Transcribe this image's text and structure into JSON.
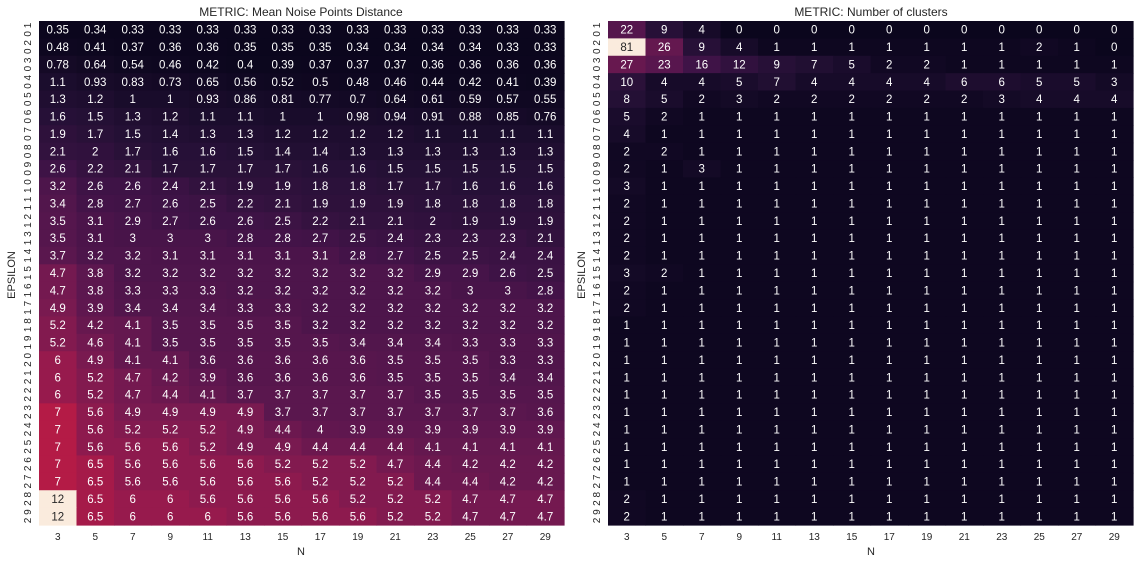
{
  "chart_data": [
    {
      "type": "heatmap",
      "title": "METRIC: Mean Noise Points Distance",
      "xlabel": "N",
      "ylabel": "EPSILON",
      "x_ticks": [
        "3",
        "5",
        "7",
        "9",
        "11",
        "13",
        "15",
        "17",
        "19",
        "21",
        "23",
        "25",
        "27",
        "29"
      ],
      "y_ticks": [
        "0.1",
        "0.2",
        "0.3",
        "0.4",
        "0.5",
        "0.6",
        "0.7",
        "0.8",
        "0.9",
        "1.0",
        "1.1",
        "1.2",
        "1.3",
        "1.4",
        "1.5",
        "1.6",
        "1.7",
        "1.8",
        "1.9",
        "2.0",
        "2.1",
        "2.2",
        "2.3",
        "2.4",
        "2.5",
        "2.6",
        "2.7",
        "2.8",
        "2.9"
      ],
      "y_tick_display": [
        "0 1",
        "0 2",
        "0 3",
        "0 4",
        "0 5",
        "0 6",
        "0 7",
        "0 8",
        "0 9",
        "1 0",
        "1 1",
        "1 2",
        "1 3",
        "1 4",
        "1 5",
        "1 6",
        "1 7",
        "1 8",
        "1 9",
        "2 0",
        "2 1",
        "2 2",
        "2 3",
        "2 4",
        "2 5",
        "2 6",
        "2 7",
        "2 8",
        "2 9"
      ],
      "colormap": "rocket",
      "vmin": 0.33,
      "vmax": 12,
      "values": [
        [
          "0.35",
          "0.34",
          "0.33",
          "0.33",
          "0.33",
          "0.33",
          "0.33",
          "0.33",
          "0.33",
          "0.33",
          "0.33",
          "0.33",
          "0.33",
          "0.33"
        ],
        [
          "0.48",
          "0.41",
          "0.37",
          "0.36",
          "0.36",
          "0.35",
          "0.35",
          "0.35",
          "0.34",
          "0.34",
          "0.34",
          "0.34",
          "0.33",
          "0.33"
        ],
        [
          "0.78",
          "0.64",
          "0.54",
          "0.46",
          "0.42",
          "0.4",
          "0.39",
          "0.37",
          "0.37",
          "0.37",
          "0.36",
          "0.36",
          "0.36",
          "0.36"
        ],
        [
          "1.1",
          "0.93",
          "0.83",
          "0.73",
          "0.65",
          "0.56",
          "0.52",
          "0.5",
          "0.48",
          "0.46",
          "0.44",
          "0.42",
          "0.41",
          "0.39"
        ],
        [
          "1.3",
          "1.2",
          "1",
          "1",
          "0.93",
          "0.86",
          "0.81",
          "0.77",
          "0.7",
          "0.64",
          "0.61",
          "0.59",
          "0.57",
          "0.55"
        ],
        [
          "1.6",
          "1.5",
          "1.3",
          "1.2",
          "1.1",
          "1.1",
          "1",
          "1",
          "0.98",
          "0.94",
          "0.91",
          "0.88",
          "0.85",
          "0.76"
        ],
        [
          "1.9",
          "1.7",
          "1.5",
          "1.4",
          "1.3",
          "1.3",
          "1.2",
          "1.2",
          "1.2",
          "1.2",
          "1.1",
          "1.1",
          "1.1",
          "1.1"
        ],
        [
          "2.1",
          "2",
          "1.7",
          "1.6",
          "1.6",
          "1.5",
          "1.4",
          "1.4",
          "1.3",
          "1.3",
          "1.3",
          "1.3",
          "1.3",
          "1.3"
        ],
        [
          "2.6",
          "2.2",
          "2.1",
          "1.7",
          "1.7",
          "1.7",
          "1.7",
          "1.6",
          "1.6",
          "1.5",
          "1.5",
          "1.5",
          "1.5",
          "1.5"
        ],
        [
          "3.2",
          "2.6",
          "2.6",
          "2.4",
          "2.1",
          "1.9",
          "1.9",
          "1.8",
          "1.8",
          "1.7",
          "1.7",
          "1.6",
          "1.6",
          "1.6"
        ],
        [
          "3.4",
          "2.8",
          "2.7",
          "2.6",
          "2.5",
          "2.2",
          "2.1",
          "1.9",
          "1.9",
          "1.9",
          "1.8",
          "1.8",
          "1.8",
          "1.8"
        ],
        [
          "3.5",
          "3.1",
          "2.9",
          "2.7",
          "2.6",
          "2.6",
          "2.5",
          "2.2",
          "2.1",
          "2.1",
          "2",
          "1.9",
          "1.9",
          "1.9"
        ],
        [
          "3.5",
          "3.1",
          "3",
          "3",
          "3",
          "2.8",
          "2.8",
          "2.7",
          "2.5",
          "2.4",
          "2.3",
          "2.3",
          "2.3",
          "2.1"
        ],
        [
          "3.7",
          "3.2",
          "3.2",
          "3.1",
          "3.1",
          "3.1",
          "3.1",
          "3.1",
          "2.8",
          "2.7",
          "2.5",
          "2.5",
          "2.4",
          "2.4"
        ],
        [
          "4.7",
          "3.8",
          "3.2",
          "3.2",
          "3.2",
          "3.2",
          "3.2",
          "3.2",
          "3.2",
          "3.2",
          "2.9",
          "2.9",
          "2.6",
          "2.5"
        ],
        [
          "4.7",
          "3.8",
          "3.3",
          "3.3",
          "3.3",
          "3.2",
          "3.2",
          "3.2",
          "3.2",
          "3.2",
          "3.2",
          "3",
          "3",
          "2.8"
        ],
        [
          "4.9",
          "3.9",
          "3.4",
          "3.4",
          "3.4",
          "3.3",
          "3.3",
          "3.2",
          "3.2",
          "3.2",
          "3.2",
          "3.2",
          "3.2",
          "3.2"
        ],
        [
          "5.2",
          "4.2",
          "4.1",
          "3.5",
          "3.5",
          "3.5",
          "3.5",
          "3.2",
          "3.2",
          "3.2",
          "3.2",
          "3.2",
          "3.2",
          "3.2"
        ],
        [
          "5.2",
          "4.6",
          "4.1",
          "3.5",
          "3.5",
          "3.5",
          "3.5",
          "3.5",
          "3.4",
          "3.4",
          "3.4",
          "3.3",
          "3.3",
          "3.3"
        ],
        [
          "6",
          "4.9",
          "4.1",
          "4.1",
          "3.6",
          "3.6",
          "3.6",
          "3.6",
          "3.6",
          "3.5",
          "3.5",
          "3.5",
          "3.3",
          "3.3"
        ],
        [
          "6",
          "5.2",
          "4.7",
          "4.2",
          "3.9",
          "3.6",
          "3.6",
          "3.6",
          "3.6",
          "3.5",
          "3.5",
          "3.5",
          "3.4",
          "3.4"
        ],
        [
          "6",
          "5.2",
          "4.7",
          "4.4",
          "4.1",
          "3.7",
          "3.7",
          "3.7",
          "3.7",
          "3.7",
          "3.5",
          "3.5",
          "3.5",
          "3.5"
        ],
        [
          "7",
          "5.6",
          "4.9",
          "4.9",
          "4.9",
          "4.9",
          "3.7",
          "3.7",
          "3.7",
          "3.7",
          "3.7",
          "3.7",
          "3.7",
          "3.6"
        ],
        [
          "7",
          "5.6",
          "5.2",
          "5.2",
          "5.2",
          "4.9",
          "4.4",
          "4",
          "3.9",
          "3.9",
          "3.9",
          "3.9",
          "3.9",
          "3.9"
        ],
        [
          "7",
          "5.6",
          "5.6",
          "5.6",
          "5.2",
          "4.9",
          "4.9",
          "4.4",
          "4.4",
          "4.4",
          "4.1",
          "4.1",
          "4.1",
          "4.1"
        ],
        [
          "7",
          "6.5",
          "5.6",
          "5.6",
          "5.6",
          "5.6",
          "5.2",
          "5.2",
          "5.2",
          "4.7",
          "4.4",
          "4.2",
          "4.2",
          "4.2"
        ],
        [
          "7",
          "6.5",
          "5.6",
          "5.6",
          "5.6",
          "5.6",
          "5.6",
          "5.2",
          "5.2",
          "5.2",
          "4.4",
          "4.4",
          "4.2",
          "4.2"
        ],
        [
          "12",
          "6.5",
          "6",
          "6",
          "5.6",
          "5.6",
          "5.6",
          "5.6",
          "5.2",
          "5.2",
          "5.2",
          "4.7",
          "4.7",
          "4.7"
        ],
        [
          "12",
          "6.5",
          "6",
          "6",
          "6",
          "5.6",
          "5.6",
          "5.6",
          "5.6",
          "5.2",
          "5.2",
          "4.7",
          "4.7",
          "4.7"
        ]
      ]
    },
    {
      "type": "heatmap",
      "title": "METRIC: Number of clusters",
      "xlabel": "N",
      "ylabel": "EPSILON",
      "x_ticks": [
        "3",
        "5",
        "7",
        "9",
        "11",
        "13",
        "15",
        "17",
        "19",
        "21",
        "23",
        "25",
        "27",
        "29"
      ],
      "y_ticks": [
        "0.1",
        "0.2",
        "0.3",
        "0.4",
        "0.5",
        "0.6",
        "0.7",
        "0.8",
        "0.9",
        "1.0",
        "1.1",
        "1.2",
        "1.3",
        "1.4",
        "1.5",
        "1.6",
        "1.7",
        "1.8",
        "1.9",
        "2.0",
        "2.1",
        "2.2",
        "2.3",
        "2.4",
        "2.5",
        "2.6",
        "2.7",
        "2.8",
        "2.9"
      ],
      "y_tick_display": [
        "0 1",
        "0 2",
        "0 3",
        "0 4",
        "0 5",
        "0 6",
        "0 7",
        "0 8",
        "0 9",
        "1 0",
        "1 1",
        "1 2",
        "1 3",
        "1 4",
        "1 5",
        "1 6",
        "1 7",
        "1 8",
        "1 9",
        "2 0",
        "2 1",
        "2 2",
        "2 3",
        "2 4",
        "2 5",
        "2 6",
        "2 7",
        "2 8",
        "2 9"
      ],
      "colormap": "rocket",
      "vmin": 0,
      "vmax": 81,
      "values": [
        [
          "22",
          "9",
          "4",
          "0",
          "0",
          "0",
          "0",
          "0",
          "0",
          "0",
          "0",
          "0",
          "0",
          "0"
        ],
        [
          "81",
          "26",
          "9",
          "4",
          "1",
          "1",
          "1",
          "1",
          "1",
          "1",
          "1",
          "2",
          "1",
          "0"
        ],
        [
          "27",
          "23",
          "16",
          "12",
          "9",
          "7",
          "5",
          "2",
          "2",
          "1",
          "1",
          "1",
          "1",
          "1"
        ],
        [
          "10",
          "4",
          "4",
          "5",
          "7",
          "4",
          "4",
          "4",
          "4",
          "6",
          "6",
          "5",
          "5",
          "3"
        ],
        [
          "8",
          "5",
          "2",
          "3",
          "2",
          "2",
          "2",
          "2",
          "2",
          "2",
          "3",
          "4",
          "4",
          "4"
        ],
        [
          "5",
          "2",
          "1",
          "1",
          "1",
          "1",
          "1",
          "1",
          "1",
          "1",
          "1",
          "1",
          "1",
          "1"
        ],
        [
          "4",
          "1",
          "1",
          "1",
          "1",
          "1",
          "1",
          "1",
          "1",
          "1",
          "1",
          "1",
          "1",
          "1"
        ],
        [
          "2",
          "2",
          "1",
          "1",
          "1",
          "1",
          "1",
          "1",
          "1",
          "1",
          "1",
          "1",
          "1",
          "1"
        ],
        [
          "2",
          "1",
          "3",
          "1",
          "1",
          "1",
          "1",
          "1",
          "1",
          "1",
          "1",
          "1",
          "1",
          "1"
        ],
        [
          "3",
          "1",
          "1",
          "1",
          "1",
          "1",
          "1",
          "1",
          "1",
          "1",
          "1",
          "1",
          "1",
          "1"
        ],
        [
          "2",
          "1",
          "1",
          "1",
          "1",
          "1",
          "1",
          "1",
          "1",
          "1",
          "1",
          "1",
          "1",
          "1"
        ],
        [
          "2",
          "1",
          "1",
          "1",
          "1",
          "1",
          "1",
          "1",
          "1",
          "1",
          "1",
          "1",
          "1",
          "1"
        ],
        [
          "2",
          "1",
          "1",
          "1",
          "1",
          "1",
          "1",
          "1",
          "1",
          "1",
          "1",
          "1",
          "1",
          "1"
        ],
        [
          "2",
          "1",
          "1",
          "1",
          "1",
          "1",
          "1",
          "1",
          "1",
          "1",
          "1",
          "1",
          "1",
          "1"
        ],
        [
          "3",
          "2",
          "1",
          "1",
          "1",
          "1",
          "1",
          "1",
          "1",
          "1",
          "1",
          "1",
          "1",
          "1"
        ],
        [
          "2",
          "1",
          "1",
          "1",
          "1",
          "1",
          "1",
          "1",
          "1",
          "1",
          "1",
          "1",
          "1",
          "1"
        ],
        [
          "2",
          "1",
          "1",
          "1",
          "1",
          "1",
          "1",
          "1",
          "1",
          "1",
          "1",
          "1",
          "1",
          "1"
        ],
        [
          "1",
          "1",
          "1",
          "1",
          "1",
          "1",
          "1",
          "1",
          "1",
          "1",
          "1",
          "1",
          "1",
          "1"
        ],
        [
          "1",
          "1",
          "1",
          "1",
          "1",
          "1",
          "1",
          "1",
          "1",
          "1",
          "1",
          "1",
          "1",
          "1"
        ],
        [
          "1",
          "1",
          "1",
          "1",
          "1",
          "1",
          "1",
          "1",
          "1",
          "1",
          "1",
          "1",
          "1",
          "1"
        ],
        [
          "1",
          "1",
          "1",
          "1",
          "1",
          "1",
          "1",
          "1",
          "1",
          "1",
          "1",
          "1",
          "1",
          "1"
        ],
        [
          "1",
          "1",
          "1",
          "1",
          "1",
          "1",
          "1",
          "1",
          "1",
          "1",
          "1",
          "1",
          "1",
          "1"
        ],
        [
          "1",
          "1",
          "1",
          "1",
          "1",
          "1",
          "1",
          "1",
          "1",
          "1",
          "1",
          "1",
          "1",
          "1"
        ],
        [
          "1",
          "1",
          "1",
          "1",
          "1",
          "1",
          "1",
          "1",
          "1",
          "1",
          "1",
          "1",
          "1",
          "1"
        ],
        [
          "1",
          "1",
          "1",
          "1",
          "1",
          "1",
          "1",
          "1",
          "1",
          "1",
          "1",
          "1",
          "1",
          "1"
        ],
        [
          "1",
          "1",
          "1",
          "1",
          "1",
          "1",
          "1",
          "1",
          "1",
          "1",
          "1",
          "1",
          "1",
          "1"
        ],
        [
          "1",
          "1",
          "1",
          "1",
          "1",
          "1",
          "1",
          "1",
          "1",
          "1",
          "1",
          "1",
          "1",
          "1"
        ],
        [
          "2",
          "1",
          "1",
          "1",
          "1",
          "1",
          "1",
          "1",
          "1",
          "1",
          "1",
          "1",
          "1",
          "1"
        ],
        [
          "2",
          "1",
          "1",
          "1",
          "1",
          "1",
          "1",
          "1",
          "1",
          "1",
          "1",
          "1",
          "1",
          "1"
        ]
      ]
    }
  ]
}
